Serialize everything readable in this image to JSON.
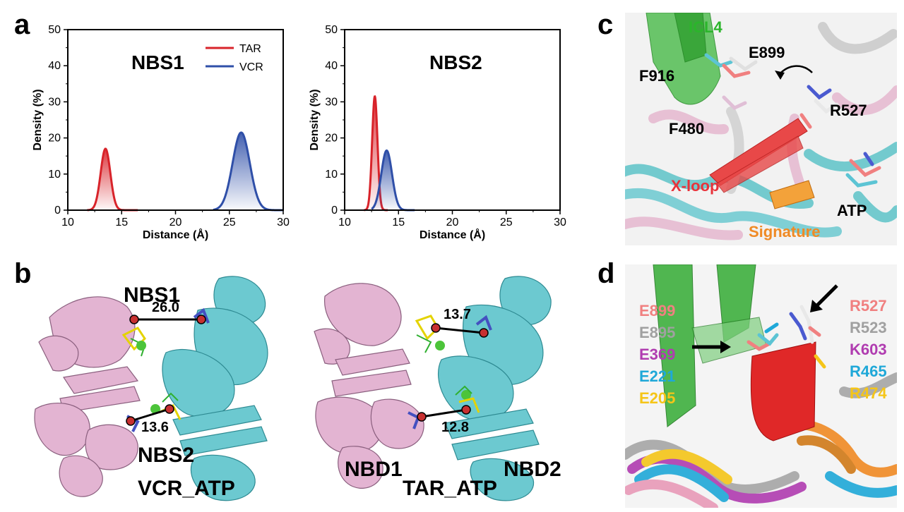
{
  "panel_letters": {
    "a": "a",
    "b": "b",
    "c": "c",
    "d": "d"
  },
  "chart_data": [
    {
      "type": "area",
      "title": "NBS1",
      "xlabel": "Distance (Å)",
      "ylabel": "Density (%)",
      "xlim": [
        10,
        30
      ],
      "ylim": [
        0,
        50
      ],
      "xticks": [
        "10",
        "15",
        "20",
        "25",
        "30"
      ],
      "yticks": [
        "0",
        "10",
        "20",
        "30",
        "40",
        "50"
      ],
      "legend": {
        "placement": "top-right",
        "entries": [
          "TAR",
          "VCR"
        ]
      },
      "series": [
        {
          "name": "TAR",
          "color": "#d8232a",
          "peak_x": 13.5,
          "peak_y": 17,
          "sigma": 0.45,
          "x_range": [
            11.8,
            16.5
          ]
        },
        {
          "name": "VCR",
          "color": "#2f4fa8",
          "peak_x": 26.1,
          "peak_y": 21.5,
          "sigma": 0.8,
          "x_range": [
            23.5,
            30
          ]
        }
      ]
    },
    {
      "type": "area",
      "title": "NBS2",
      "xlabel": "Distance (Å)",
      "ylabel": "Density (%)",
      "xlim": [
        10,
        30
      ],
      "ylim": [
        0,
        50
      ],
      "xticks": [
        "10",
        "15",
        "20",
        "25",
        "30"
      ],
      "yticks": [
        "0",
        "10",
        "20",
        "30",
        "40",
        "50"
      ],
      "series": [
        {
          "name": "TAR",
          "color": "#d8232a",
          "peak_x": 12.8,
          "peak_y": 31.5,
          "sigma": 0.25,
          "x_range": [
            11.8,
            14
          ]
        },
        {
          "name": "VCR",
          "color": "#2f4fa8",
          "peak_x": 13.9,
          "peak_y": 16.5,
          "sigma": 0.5,
          "x_range": [
            12.5,
            16.5
          ]
        }
      ]
    }
  ],
  "panel_b": {
    "left": {
      "top_label": "NBS1",
      "distance_top": "26.0",
      "distance_bottom": "13.6",
      "bottom_label": "NBS2",
      "caption": "VCR_ATP"
    },
    "right": {
      "distance_top": "13.7",
      "distance_bottom": "12.8",
      "left_domain": "NBD1",
      "right_domain": "NBD2",
      "caption": "TAR_ATP"
    }
  },
  "panel_c": {
    "labels": {
      "icl4": "ICL4",
      "e899": "E899",
      "f916": "F916",
      "r527": "R527",
      "f480": "F480",
      "xloop": "X-loop",
      "atp": "ATP",
      "signature": "Signature"
    },
    "colors": {
      "icl4": "#2bb52b",
      "xloop": "#e8323a",
      "signature": "#f08a24"
    }
  },
  "panel_d": {
    "left_labels": [
      {
        "text": "E899",
        "color": "#f08080"
      },
      {
        "text": "E895",
        "color": "#a0a0a0"
      },
      {
        "text": "E369",
        "color": "#b03cb0"
      },
      {
        "text": "E221",
        "color": "#1fa8d8"
      },
      {
        "text": "E205",
        "color": "#f5c518"
      }
    ],
    "right_labels": [
      {
        "text": "R527",
        "color": "#f08080"
      },
      {
        "text": "R523",
        "color": "#a0a0a0"
      },
      {
        "text": "K603",
        "color": "#b03cb0"
      },
      {
        "text": "R465",
        "color": "#1fa8d8"
      },
      {
        "text": "R474",
        "color": "#f5c518"
      }
    ]
  }
}
